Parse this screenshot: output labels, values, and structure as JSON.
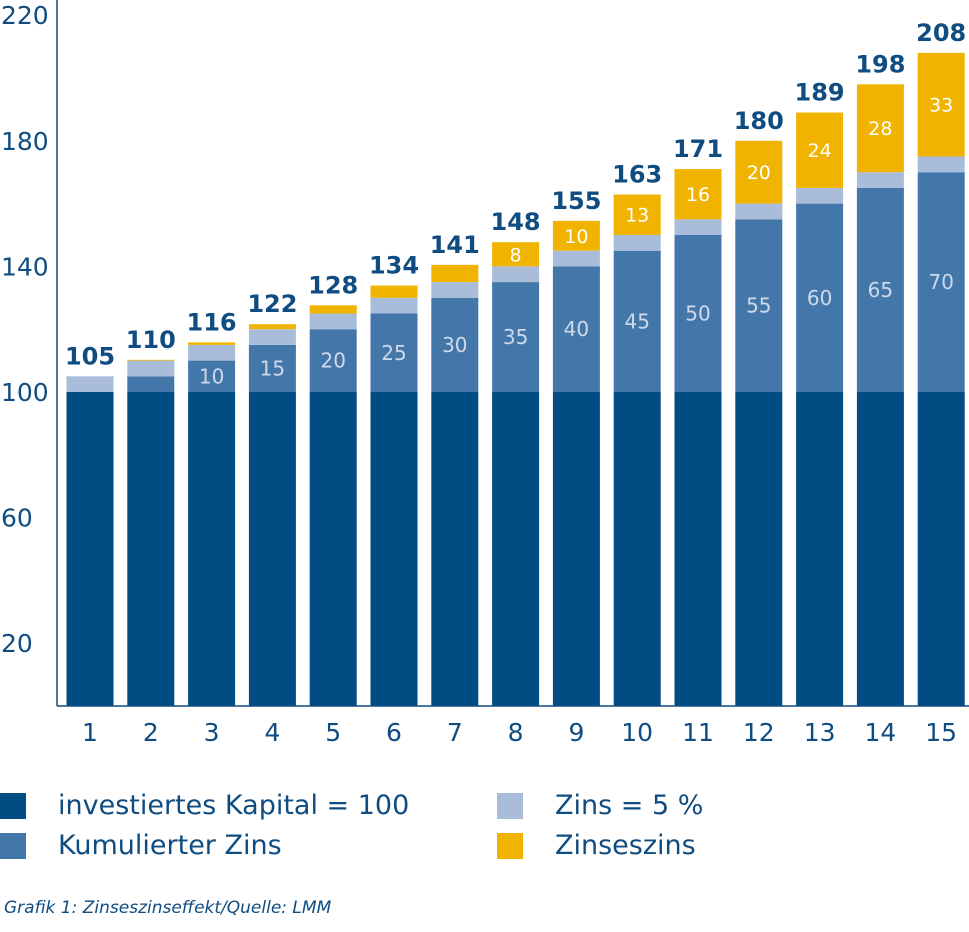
{
  "colors": {
    "kapital": "#004c83",
    "kumuliert": "#4377aa",
    "zins": "#a9bddb",
    "zinseszins": "#f0b400",
    "axis": "#0f4c81"
  },
  "chart_data": {
    "type": "bar",
    "stacked": true,
    "categories": [
      "1",
      "2",
      "3",
      "4",
      "5",
      "6",
      "7",
      "8",
      "9",
      "10",
      "11",
      "12",
      "13",
      "14",
      "15"
    ],
    "series": [
      {
        "name": "investiertes Kapital = 100",
        "values": [
          100,
          100,
          100,
          100,
          100,
          100,
          100,
          100,
          100,
          100,
          100,
          100,
          100,
          100,
          100
        ]
      },
      {
        "name": "Kumulierter Zins",
        "values": [
          0,
          5,
          10,
          15,
          20,
          25,
          30,
          35,
          40,
          45,
          50,
          55,
          60,
          65,
          70
        ]
      },
      {
        "name": "Zins = 5 %",
        "values": [
          5,
          5,
          5,
          5,
          5,
          5,
          5,
          5,
          5,
          5,
          5,
          5,
          5,
          5,
          5
        ]
      },
      {
        "name": "Zinseszins",
        "values": [
          0,
          0.25,
          0.8,
          1.6,
          2.6,
          3.9,
          5.5,
          7.7,
          9.5,
          12.9,
          16.0,
          20.0,
          24.0,
          28.0,
          33.0
        ]
      }
    ],
    "inner_labels": [
      "",
      "",
      "10",
      "15",
      "20",
      "25",
      "30",
      "35",
      "40",
      "45",
      "50",
      "55",
      "60",
      "65",
      "70"
    ],
    "zinseszins_labels": [
      "",
      "",
      "",
      "",
      "",
      "",
      "",
      "8",
      "10",
      "13",
      "16",
      "20",
      "24",
      "28",
      "33"
    ],
    "totals": [
      "105",
      "110",
      "116",
      "122",
      "128",
      "134",
      "141",
      "148",
      "155",
      "163",
      "171",
      "180",
      "189",
      "198",
      "208"
    ],
    "yticks": [
      "20",
      "60",
      "100",
      "140",
      "180",
      "220"
    ],
    "ylim": [
      0,
      220
    ],
    "grid": false,
    "legend_position": "bottom"
  },
  "legend": [
    {
      "label": "investiertes Kapital = 100",
      "color_key": "kapital"
    },
    {
      "label": "Zins = 5 %",
      "color_key": "zins"
    },
    {
      "label": "Kumulierter Zins",
      "color_key": "kumuliert"
    },
    {
      "label": "Zinseszins",
      "color_key": "zinseszins"
    }
  ],
  "caption": "Grafik 1: Zinseszinseffekt/Quelle: LMM"
}
